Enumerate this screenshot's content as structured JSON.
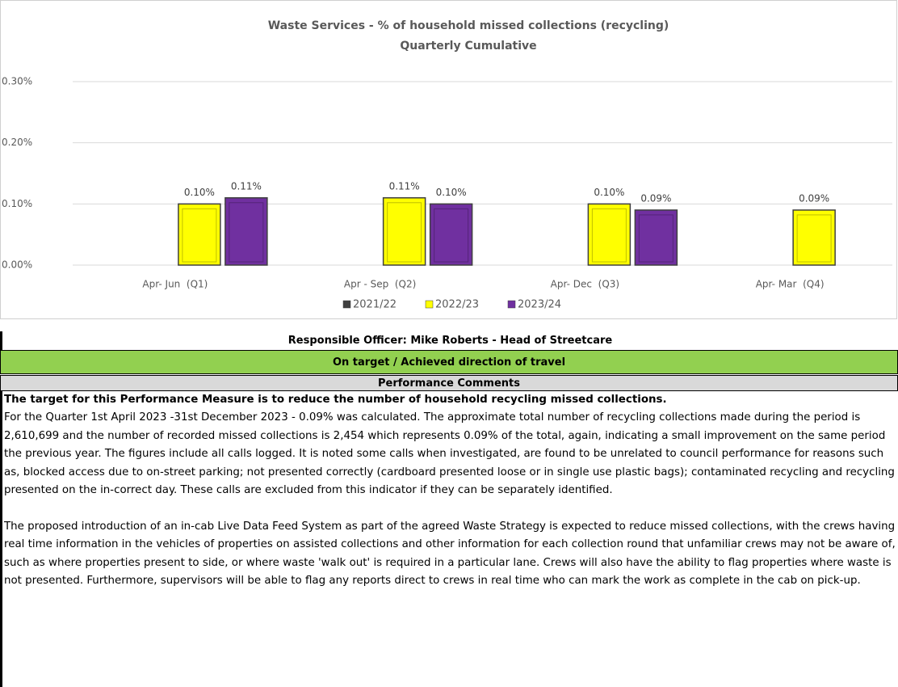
{
  "chart_data": {
    "type": "bar",
    "title": "Waste Services - % of household missed collections (recycling)",
    "subtitle": "Quarterly Cumulative",
    "categories": [
      "Apr- Jun  (Q1)",
      "Apr - Sep  (Q2)",
      "Apr- Dec  (Q3)",
      "Apr- Mar  (Q4)"
    ],
    "series": [
      {
        "name": "2021/22",
        "color": "#404040",
        "values": [
          null,
          null,
          null,
          null
        ]
      },
      {
        "name": "2022/23",
        "color": "#ffff00",
        "values": [
          0.1,
          0.11,
          0.1,
          0.09
        ],
        "value_labels": [
          "0.10%",
          "0.11%",
          "0.10%",
          "0.09%"
        ]
      },
      {
        "name": "2023/24",
        "color": "#7030a0",
        "values": [
          0.11,
          0.1,
          0.09,
          null
        ],
        "value_labels": [
          "0.11%",
          "0.10%",
          "0.09%",
          null
        ]
      }
    ],
    "ylim": [
      0,
      0.3
    ],
    "yticks": [
      {
        "value": 0,
        "label": "0.00%"
      },
      {
        "value": 0.1,
        "label": "0.10%"
      },
      {
        "value": 0.2,
        "label": "0.20%"
      },
      {
        "value": 0.3,
        "label": "0.30%"
      }
    ],
    "grid": true,
    "legend": "bottom"
  },
  "document": {
    "responsible_officer": "Responsible Officer:  Mike Roberts - Head of Streetcare",
    "status": "On target / Achieved direction of travel",
    "comments_heading": "Performance Comments",
    "comments_lead": "The target for this Performance Measure is to reduce the number of household recycling missed collections.",
    "comments": [
      "For the Quarter 1st April 2023 -31st December 2023 - 0.09% was calculated. The approximate total number of recycling collections made during the period is 2,610,699 and the number of recorded missed collections is 2,454 which represents 0.09% of the total, again, indicating a small improvement on the same period the previous year.  The figures include all calls logged. It is noted some calls when investigated, are found to be unrelated to council performance for reasons such as, blocked access due to on-street parking; not presented correctly (cardboard presented loose or in single use plastic bags); contaminated recycling and recycling presented on the in-correct day. These calls are excluded from this indicator if they can be separately identified.",
      "The proposed introduction of an in-cab Live Data Feed System as part of the agreed Waste Strategy is expected to reduce missed collections, with the crews having real time information in the vehicles of properties on assisted collections and other information for each collection round that unfamiliar crews may not be aware of, such as where properties present to side, or where waste 'walk out' is required in a particular lane.  Crews will also have the ability to flag properties where waste is not presented. Furthermore, supervisors will be able to flag any reports direct to crews in real time who can mark the work as complete in the cab on pick-up."
    ]
  }
}
